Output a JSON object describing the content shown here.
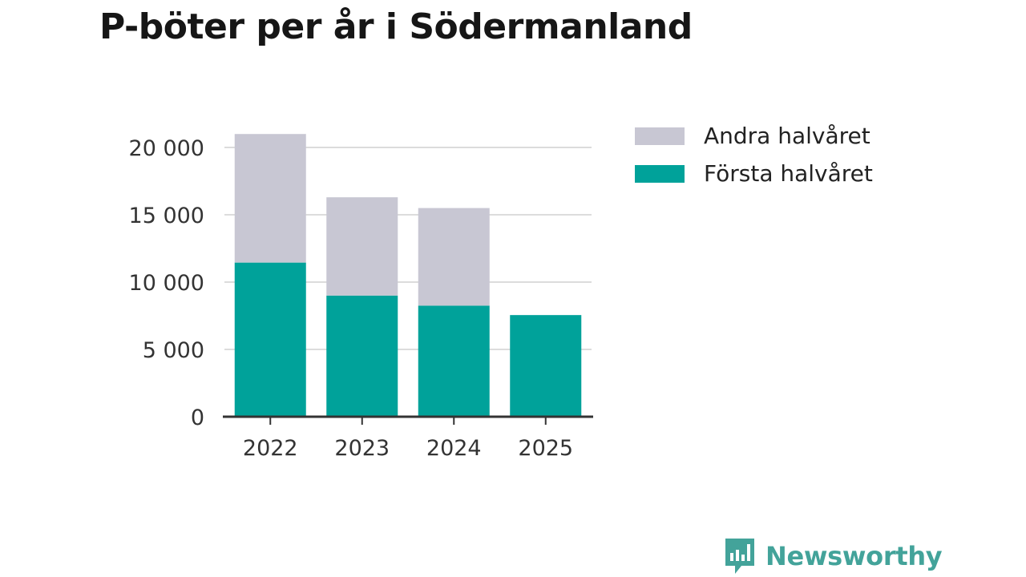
{
  "title": "P-böter per år i Södermanland",
  "colors": {
    "first": "#00a29a",
    "second": "#c8c7d3",
    "grid": "#dcdcdc",
    "axis": "#333333",
    "brand": "#43a39a"
  },
  "chart_data": {
    "type": "bar",
    "stacked": true,
    "categories": [
      "2022",
      "2023",
      "2024",
      "2025"
    ],
    "series": [
      {
        "name": "Första halvåret",
        "values": [
          11450,
          9000,
          8250,
          7550
        ]
      },
      {
        "name": "Andra halvåret",
        "values": [
          9550,
          7300,
          7250,
          0
        ]
      }
    ],
    "yticks": [
      0,
      5000,
      10000,
      15000,
      20000
    ],
    "ytick_labels": [
      "0",
      "5 000",
      "10 000",
      "15 000",
      "20 000"
    ],
    "ylim": [
      0,
      21000
    ],
    "grid": true,
    "legend_position": "right",
    "legend": [
      "Andra halvåret",
      "Första halvåret"
    ]
  },
  "legend": {
    "items": [
      {
        "label": "Andra halvåret",
        "color_key": "second"
      },
      {
        "label": "Första halvåret",
        "color_key": "first"
      }
    ]
  },
  "brand": {
    "name": "Newsworthy",
    "icon": "bar-chart-bubble-icon"
  }
}
